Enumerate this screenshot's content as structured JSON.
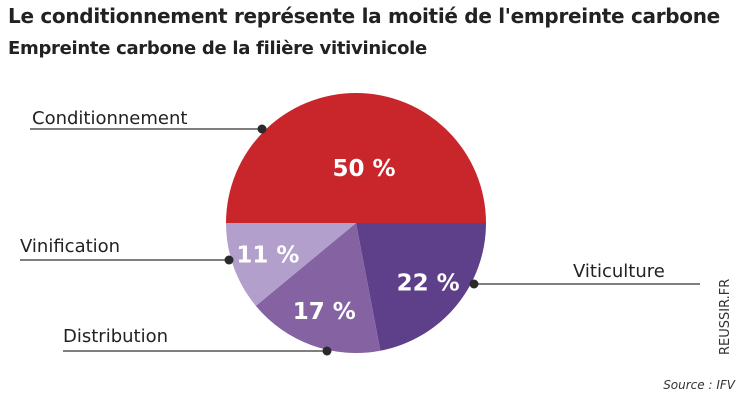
{
  "chart_data": {
    "type": "pie",
    "title": "Le conditionnement représente la moitié de l'empreinte carbone",
    "subtitle": "Empreinte carbone de la filière vitivinicole",
    "slices": [
      {
        "label": "Viticulture",
        "value": 22,
        "value_label": "22 %",
        "color": "#5e3f8a"
      },
      {
        "label": "Distribution",
        "value": 17,
        "value_label": "17 %",
        "color": "#8563a3"
      },
      {
        "label": "Vinification",
        "value": 11,
        "value_label": "11 %",
        "color": "#b29fcb"
      },
      {
        "label": "Conditionnement",
        "value": 50,
        "value_label": "50 %",
        "color": "#c9262c"
      }
    ]
  },
  "source": "Source : IFV",
  "credit": "REUSSIR.FR"
}
